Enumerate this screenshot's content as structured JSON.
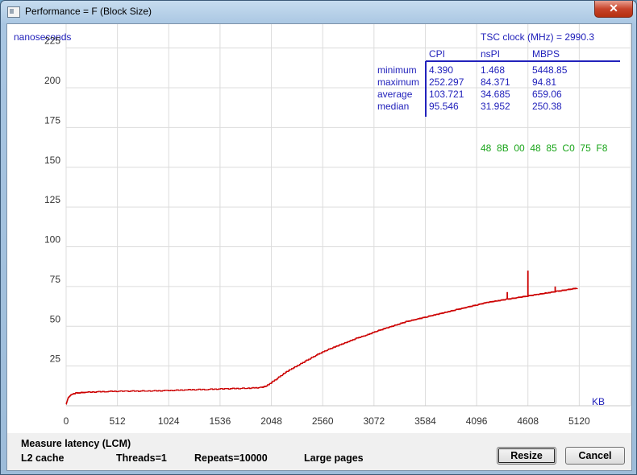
{
  "window": {
    "title": "Performance = F (Block Size)",
    "close_label": "✕"
  },
  "chart_data": {
    "type": "line",
    "ylabel": "nanoseconds",
    "xlabel": "KB",
    "xlim": [
      0,
      5632
    ],
    "ylim": [
      0,
      240
    ],
    "x_ticks": [
      0,
      512,
      1024,
      1536,
      2048,
      2560,
      3072,
      3584,
      4096,
      4608,
      5120
    ],
    "y_ticks": [
      25,
      50,
      75,
      100,
      125,
      150,
      175,
      200,
      225
    ],
    "grid": true,
    "series": [
      {
        "color": "#cc0000",
        "points": [
          [
            0,
            1
          ],
          [
            20,
            5
          ],
          [
            50,
            7
          ],
          [
            100,
            8
          ],
          [
            200,
            8.5
          ],
          [
            400,
            9
          ],
          [
            600,
            9.2
          ],
          [
            800,
            9.3
          ],
          [
            1000,
            9.5
          ],
          [
            1200,
            10
          ],
          [
            1400,
            10.3
          ],
          [
            1600,
            10.7
          ],
          [
            1800,
            11
          ],
          [
            1950,
            11.5
          ],
          [
            2000,
            12.5
          ],
          [
            2100,
            17
          ],
          [
            2200,
            21.5
          ],
          [
            2300,
            25
          ],
          [
            2400,
            28.5
          ],
          [
            2500,
            32
          ],
          [
            2600,
            35
          ],
          [
            2700,
            37.5
          ],
          [
            2800,
            40
          ],
          [
            2900,
            42.5
          ],
          [
            3000,
            44.5
          ],
          [
            3100,
            47
          ],
          [
            3200,
            49
          ],
          [
            3300,
            51
          ],
          [
            3400,
            53
          ],
          [
            3500,
            54.5
          ],
          [
            3600,
            56
          ],
          [
            3700,
            57.5
          ],
          [
            3800,
            59
          ],
          [
            3900,
            60.5
          ],
          [
            4000,
            62
          ],
          [
            4100,
            63.5
          ],
          [
            4200,
            65
          ],
          [
            4300,
            66
          ],
          [
            4400,
            67
          ],
          [
            4500,
            68
          ],
          [
            4600,
            69
          ],
          [
            4700,
            70
          ],
          [
            4800,
            71
          ],
          [
            4900,
            72
          ],
          [
            5000,
            73
          ],
          [
            5100,
            74
          ]
        ],
        "spikes": [
          [
            4402,
            71.5
          ],
          [
            4608,
            85
          ],
          [
            4880,
            75
          ]
        ]
      }
    ],
    "stats_table": {
      "headers": [
        "CPI",
        "nsPI",
        "MBPS"
      ],
      "rows": [
        {
          "label": "minimum",
          "values": [
            "4.390",
            "1.468",
            "5448.85"
          ]
        },
        {
          "label": "maximum",
          "values": [
            "252.297",
            "84.371",
            "94.81"
          ]
        },
        {
          "label": "average",
          "values": [
            "103.721",
            "34.685",
            "659.06"
          ]
        },
        {
          "label": "median",
          "values": [
            "95.546",
            "31.952",
            "250.38"
          ]
        }
      ]
    },
    "tsc_clock": "TSC clock (MHz)  = 2990.3",
    "instruction_bytes": "48  8B  00  48  85  C0  75  F8"
  },
  "footer": {
    "mode": "Measure latency (LCM)",
    "cache": "L2 cache",
    "threads": "Threads=1",
    "repeats": "Repeats=10000",
    "pages": "Large pages",
    "resize_label": "Resize",
    "cancel_label": "Cancel"
  }
}
